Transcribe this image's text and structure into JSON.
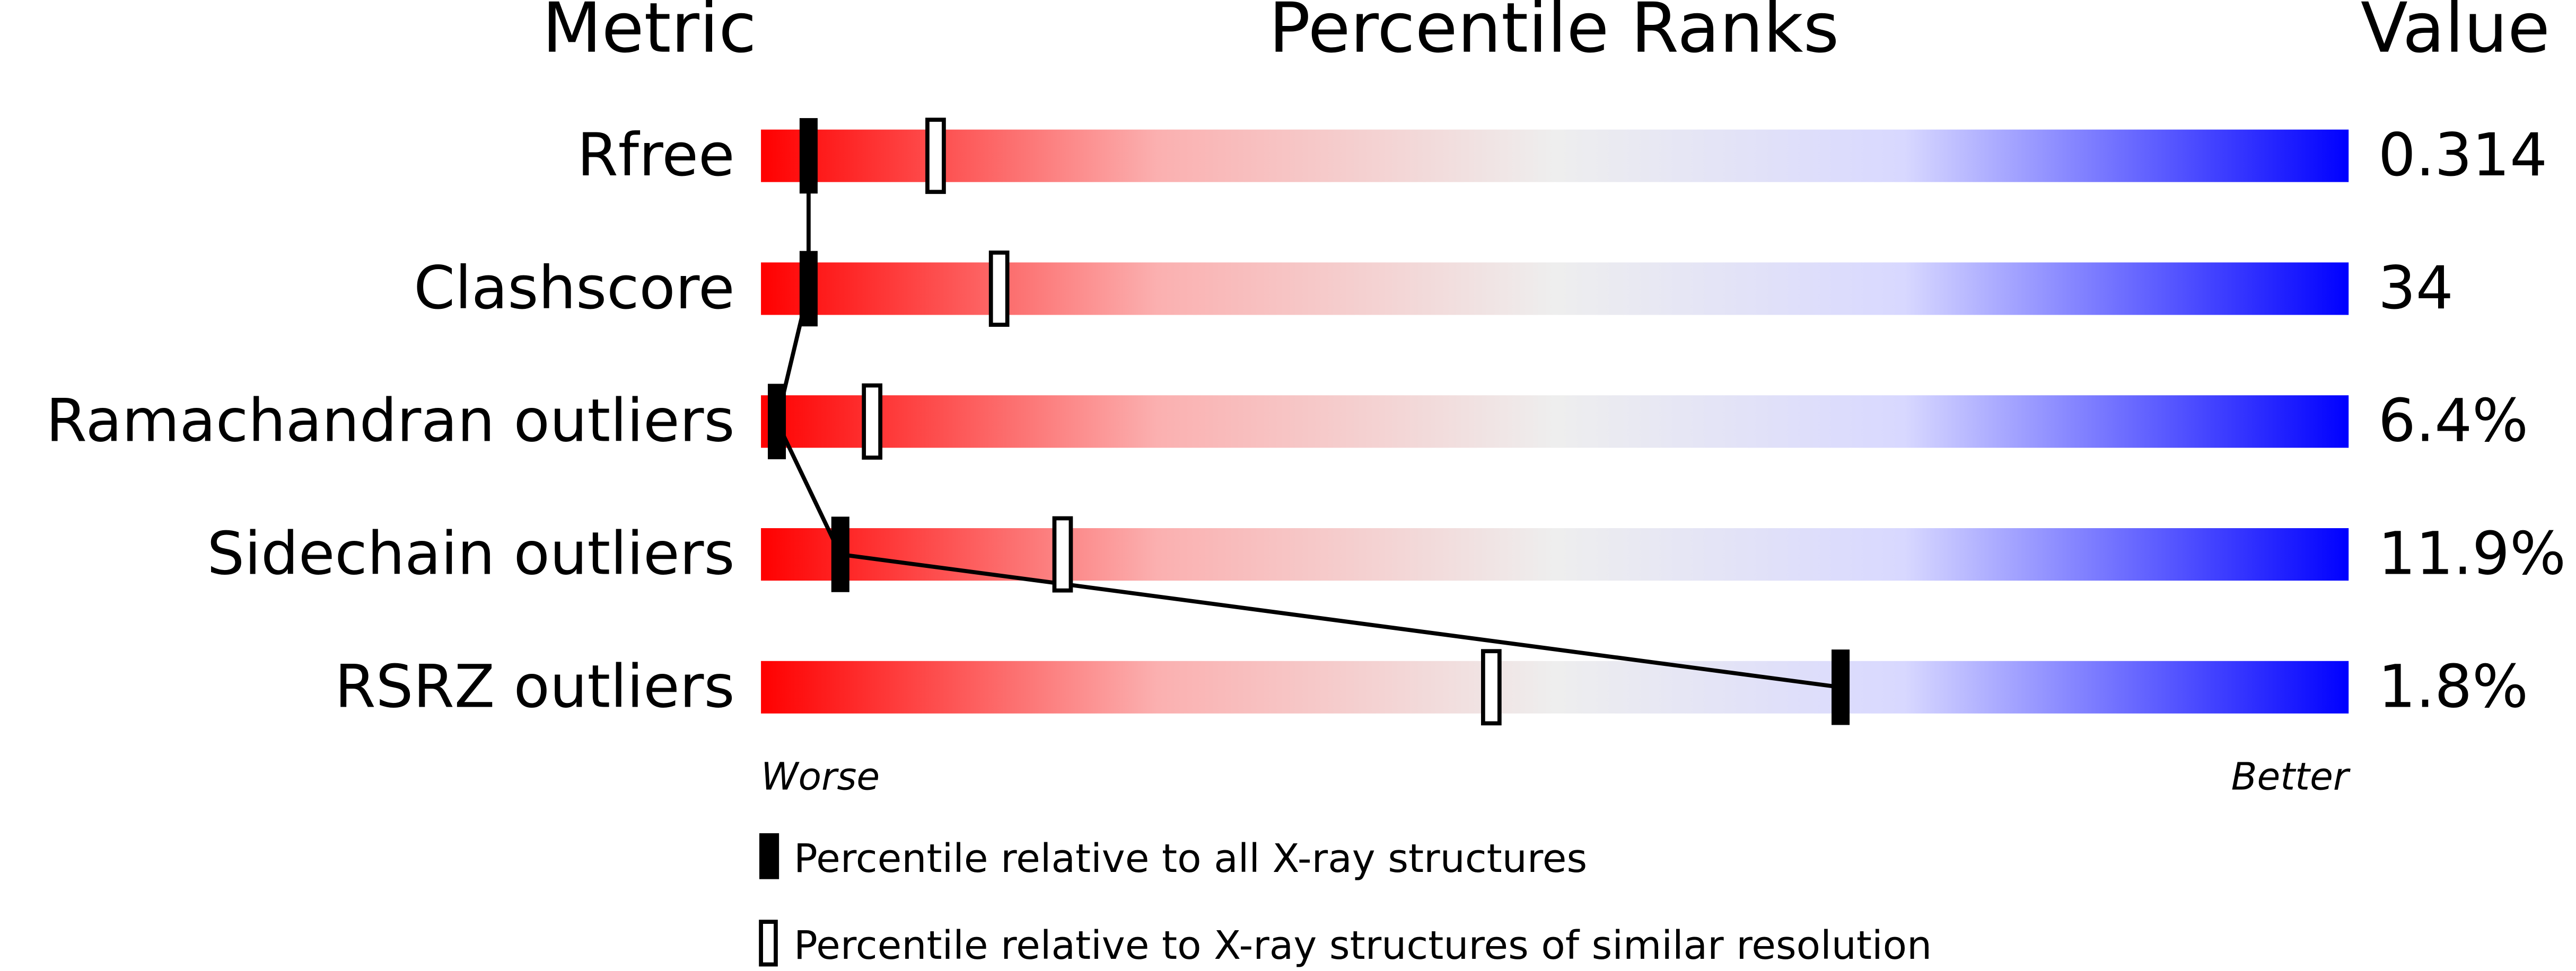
{
  "chart_data": {
    "type": "percentile",
    "headers": [
      "Metric",
      "Percentile Ranks",
      "Value"
    ],
    "categories": [
      "Rfree",
      "Clashscore",
      "Ramachandran outliers",
      "Sidechain outliers",
      "RSRZ outliers"
    ],
    "metric_values": [
      "0.314",
      "34",
      "6.4%",
      "11.9%",
      "1.8%"
    ],
    "series": [
      {
        "name": "Percentile relative to all X-ray structures",
        "color": "#000000",
        "values": [
          3,
          3,
          1,
          5,
          68
        ]
      },
      {
        "name": "Percentile relative to X-ray structures of similar resolution",
        "color": "#000000",
        "values": [
          11,
          15,
          7,
          19,
          46
        ]
      }
    ],
    "xlim": [
      0,
      100
    ],
    "axis_ends": [
      "Worse",
      "Better"
    ]
  }
}
